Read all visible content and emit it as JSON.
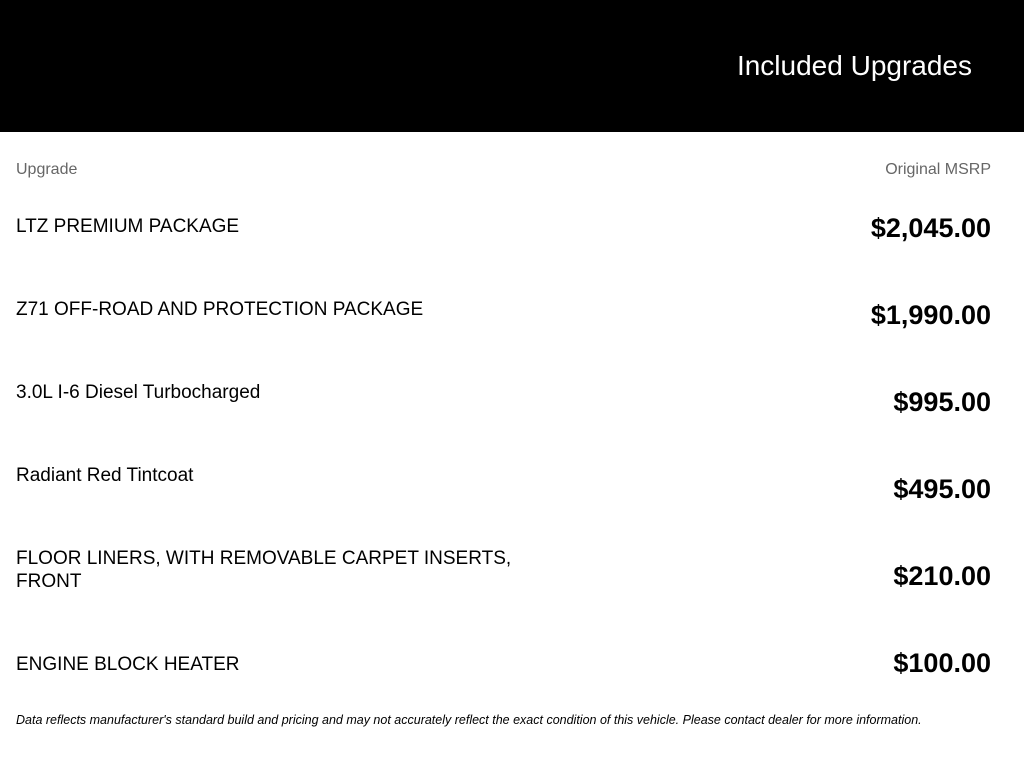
{
  "header": {
    "title": "Included Upgrades"
  },
  "table": {
    "columns": {
      "upgrade": "Upgrade",
      "msrp": "Original MSRP"
    },
    "rows": [
      {
        "name": "LTZ PREMIUM PACKAGE",
        "price": "$2,045.00"
      },
      {
        "name": "Z71 OFF-ROAD AND PROTECTION PACKAGE",
        "price": "$1,990.00"
      },
      {
        "name": "3.0L I-6 Diesel Turbocharged",
        "price": "$995.00"
      },
      {
        "name": "Radiant Red Tintcoat",
        "price": "$495.00"
      },
      {
        "name": "FLOOR LINERS, WITH REMOVABLE CARPET INSERTS, FRONT",
        "price": "$210.00"
      },
      {
        "name": "ENGINE BLOCK HEATER",
        "price": "$100.00"
      }
    ]
  },
  "footnote": "Data reflects manufacturer's standard build and pricing and may not accurately reflect the exact condition of this vehicle. Please contact dealer for more information."
}
